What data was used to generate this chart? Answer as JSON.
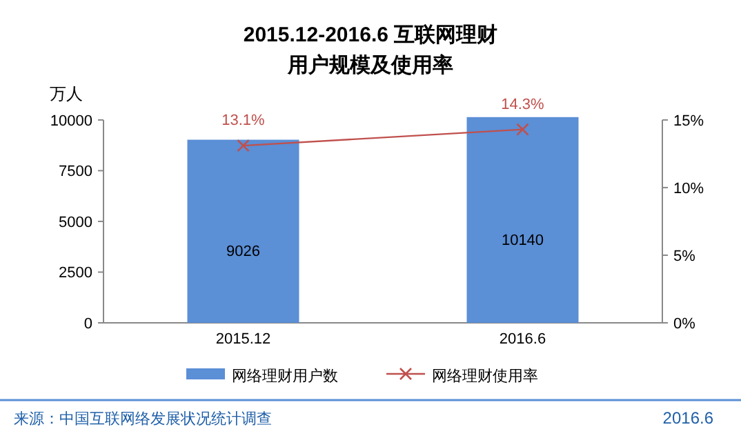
{
  "chart_data": {
    "type": "bar",
    "title": "2015.12-2016.6 互联网理财",
    "subtitle": "用户规模及使用率",
    "ylabel": "万人",
    "categories": [
      "2015.12",
      "2016.6"
    ],
    "series": [
      {
        "name": "网络理财用户数",
        "color": "#5b8fd6",
        "values": [
          9026,
          10140
        ],
        "value_labels": [
          "9026",
          "10140"
        ]
      },
      {
        "name": "网络理财使用率",
        "type": "line",
        "axis": "y2",
        "color": "#c0504d",
        "marker": "cross",
        "values": [
          13.1,
          14.3
        ],
        "value_labels": [
          "13.1%",
          "14.3%"
        ]
      }
    ],
    "ylim": [
      0,
      10200
    ],
    "yticks": [
      0,
      2500,
      5000,
      7500,
      10000
    ],
    "y2lim": [
      0,
      15.3
    ],
    "y2ticks": [
      {
        "value": 0,
        "label": "0%"
      },
      {
        "value": 5,
        "label": "5%"
      },
      {
        "value": 10,
        "label": "10%"
      },
      {
        "value": 15,
        "label": "15%"
      }
    ],
    "legend": "bottom",
    "annotations": [
      "来源：中国互联网络发展状况统计调查",
      "2016.6"
    ]
  }
}
